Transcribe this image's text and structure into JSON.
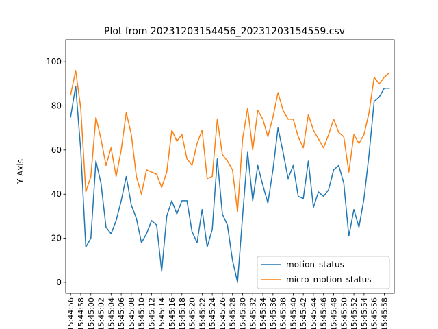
{
  "chart_data": {
    "type": "line",
    "title": "Plot from 20231203154456_20231203154559.csv",
    "xlabel": "",
    "ylabel": "Y Axis",
    "ylim": [
      -5,
      110
    ],
    "yticks": [
      0,
      20,
      40,
      60,
      80,
      100
    ],
    "grid": false,
    "legend_position": "lower right",
    "x": [
      "15:44:56",
      "15:44:57",
      "15:44:58",
      "15:44:59",
      "15:45:00",
      "15:45:01",
      "15:45:02",
      "15:45:03",
      "15:45:04",
      "15:45:05",
      "15:45:06",
      "15:45:07",
      "15:45:08",
      "15:45:09",
      "15:45:10",
      "15:45:11",
      "15:45:12",
      "15:45:13",
      "15:45:14",
      "15:45:15",
      "15:45:16",
      "15:45:17",
      "15:45:18",
      "15:45:19",
      "15:45:20",
      "15:45:21",
      "15:45:22",
      "15:45:23",
      "15:45:24",
      "15:45:25",
      "15:45:26",
      "15:45:27",
      "15:45:28",
      "15:45:29",
      "15:45:30",
      "15:45:31",
      "15:45:32",
      "15:45:33",
      "15:45:34",
      "15:45:35",
      "15:45:36",
      "15:45:37",
      "15:45:38",
      "15:45:39",
      "15:45:40",
      "15:45:41",
      "15:45:42",
      "15:45:43",
      "15:45:44",
      "15:45:45",
      "15:45:46",
      "15:45:47",
      "15:45:48",
      "15:45:49",
      "15:45:50",
      "15:45:51",
      "15:45:52",
      "15:45:53",
      "15:45:54",
      "15:45:55",
      "15:45:56",
      "15:45:57",
      "15:45:58",
      "15:45:59"
    ],
    "x_label_every": 2,
    "series": [
      {
        "name": "motion_status",
        "color": "#1f77b4",
        "values": [
          75,
          89,
          60,
          16,
          20,
          55,
          45,
          25,
          22,
          28,
          37,
          48,
          35,
          29,
          18,
          22,
          28,
          26,
          5,
          30,
          37,
          31,
          37,
          37,
          23,
          18,
          33,
          16,
          24,
          56,
          31,
          26,
          10,
          0,
          30,
          59,
          37,
          53,
          44,
          36,
          51,
          70,
          59,
          47,
          53,
          39,
          38,
          55,
          34,
          41,
          39,
          42,
          51,
          53,
          45,
          21,
          33,
          25,
          38,
          58,
          82,
          84,
          88,
          88
        ]
      },
      {
        "name": "micro_motion_status",
        "color": "#ff7f0e",
        "values": [
          85,
          96,
          79,
          41,
          48,
          75,
          65,
          53,
          61,
          48,
          60,
          77,
          67,
          48,
          40,
          51,
          50,
          49,
          43,
          50,
          69,
          64,
          67,
          56,
          53,
          63,
          69,
          47,
          48,
          74,
          58,
          55,
          51,
          32,
          65,
          79,
          60,
          78,
          74,
          66,
          75,
          86,
          78,
          74,
          74,
          66,
          61,
          76,
          69,
          65,
          61,
          67,
          74,
          68,
          66,
          50,
          67,
          63,
          67,
          77,
          93,
          90,
          93,
          95
        ]
      }
    ]
  }
}
